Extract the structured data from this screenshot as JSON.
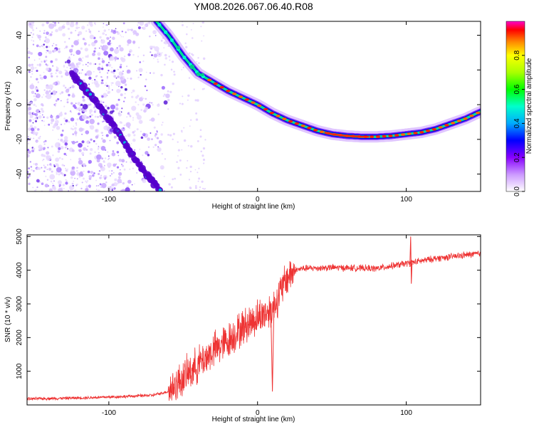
{
  "title": "YM08.2026.067.06.40.R08",
  "chart_data": [
    {
      "type": "heatmap",
      "name": "spectrogram",
      "xlabel": "Height of straight line (km)",
      "ylabel": "Frequency (Hz)",
      "xlim": [
        -155,
        150
      ],
      "ylim": [
        -50,
        48
      ],
      "xticks": [
        -100,
        0,
        100
      ],
      "xtick_labels": [
        "-100",
        "0",
        "100"
      ],
      "yticks": [
        40,
        20,
        0,
        -20,
        -40
      ],
      "ytick_labels": [
        "40",
        "20",
        "0",
        "-20",
        "-40"
      ],
      "colorbar": {
        "label": "Normalized spectral amplitude",
        "range": [
          0,
          1
        ],
        "ticks": [
          0,
          0.2,
          0.4,
          0.6,
          0.8
        ],
        "tick_labels": [
          "0.0",
          "0.2",
          "0.4",
          "0.6",
          "0.8"
        ],
        "colors": [
          "#ffffff",
          "#a055ff",
          "#3300dd",
          "#0000ff",
          "#00aaff",
          "#00ffcc",
          "#00ff00",
          "#aaff00",
          "#ffff00",
          "#ff8800",
          "#ff0000",
          "#ff00cc"
        ]
      },
      "main_trace": {
        "x": [
          -68,
          -60,
          -50,
          -40,
          -30,
          -20,
          -10,
          0,
          10,
          20,
          30,
          40,
          50,
          60,
          70,
          80,
          90,
          100,
          110,
          120,
          130,
          140,
          150
        ],
        "y": [
          48,
          40,
          28,
          18,
          13,
          8,
          4,
          0,
          -5,
          -9,
          -12,
          -15,
          -17,
          -18,
          -18.5,
          -18.5,
          -18,
          -17,
          -16,
          -14,
          -11,
          -8,
          -4
        ]
      },
      "secondary_trace": {
        "x": [
          -125,
          -115,
          -105,
          -95,
          -85,
          -75,
          -65
        ],
        "y": [
          18,
          8,
          -2,
          -15,
          -28,
          -40,
          -50
        ]
      }
    },
    {
      "type": "line",
      "name": "snr",
      "xlabel": "Height of straight line (km)",
      "ylabel": "SNR (10 * v/v)",
      "xlim": [
        -155,
        150
      ],
      "ylim": [
        0,
        5050
      ],
      "xticks": [
        -100,
        0,
        100
      ],
      "xtick_labels": [
        "-100",
        "0",
        "100"
      ],
      "yticks": [
        1000,
        2000,
        3000,
        4000,
        5000
      ],
      "ytick_labels": [
        "1000",
        "2000",
        "3000",
        "4000",
        "5000"
      ],
      "color": "#ee3333",
      "series": [
        {
          "name": "SNR",
          "x": [
            -155,
            -130,
            -110,
            -90,
            -70,
            -60,
            -50,
            -40,
            -30,
            -20,
            -10,
            0,
            10,
            15,
            20,
            25,
            30,
            50,
            80,
            100,
            120,
            150
          ],
          "y": [
            180,
            200,
            220,
            250,
            290,
            400,
            800,
            1200,
            1600,
            1900,
            2300,
            2600,
            2850,
            3300,
            3800,
            4000,
            4050,
            4080,
            4050,
            4200,
            4350,
            4500
          ]
        }
      ],
      "annotations": [
        {
          "x": 10,
          "y": 400,
          "note": "dip"
        },
        {
          "x": 103,
          "y": 5000,
          "note": "spike"
        }
      ]
    }
  ]
}
